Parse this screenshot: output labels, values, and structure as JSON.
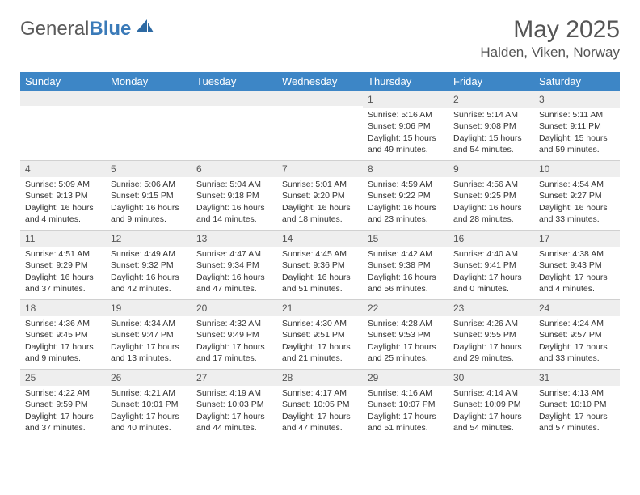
{
  "brand": {
    "part1": "General",
    "part2": "Blue"
  },
  "title": "May 2025",
  "location": "Halden, Viken, Norway",
  "colors": {
    "header_bg": "#3d86c6",
    "header_fg": "#ffffff",
    "daynum_bg": "#eeeeee",
    "text": "#333333",
    "brand_gray": "#5a5a5a",
    "brand_blue": "#3a7ab8"
  },
  "weekdays": [
    "Sunday",
    "Monday",
    "Tuesday",
    "Wednesday",
    "Thursday",
    "Friday",
    "Saturday"
  ],
  "grid": {
    "cols": 7,
    "rows": 5,
    "first_weekday_index": 4,
    "days_in_month": 31
  },
  "days": [
    {
      "n": 1,
      "sunrise": "5:16 AM",
      "sunset": "9:06 PM",
      "daylight": "15 hours and 49 minutes."
    },
    {
      "n": 2,
      "sunrise": "5:14 AM",
      "sunset": "9:08 PM",
      "daylight": "15 hours and 54 minutes."
    },
    {
      "n": 3,
      "sunrise": "5:11 AM",
      "sunset": "9:11 PM",
      "daylight": "15 hours and 59 minutes."
    },
    {
      "n": 4,
      "sunrise": "5:09 AM",
      "sunset": "9:13 PM",
      "daylight": "16 hours and 4 minutes."
    },
    {
      "n": 5,
      "sunrise": "5:06 AM",
      "sunset": "9:15 PM",
      "daylight": "16 hours and 9 minutes."
    },
    {
      "n": 6,
      "sunrise": "5:04 AM",
      "sunset": "9:18 PM",
      "daylight": "16 hours and 14 minutes."
    },
    {
      "n": 7,
      "sunrise": "5:01 AM",
      "sunset": "9:20 PM",
      "daylight": "16 hours and 18 minutes."
    },
    {
      "n": 8,
      "sunrise": "4:59 AM",
      "sunset": "9:22 PM",
      "daylight": "16 hours and 23 minutes."
    },
    {
      "n": 9,
      "sunrise": "4:56 AM",
      "sunset": "9:25 PM",
      "daylight": "16 hours and 28 minutes."
    },
    {
      "n": 10,
      "sunrise": "4:54 AM",
      "sunset": "9:27 PM",
      "daylight": "16 hours and 33 minutes."
    },
    {
      "n": 11,
      "sunrise": "4:51 AM",
      "sunset": "9:29 PM",
      "daylight": "16 hours and 37 minutes."
    },
    {
      "n": 12,
      "sunrise": "4:49 AM",
      "sunset": "9:32 PM",
      "daylight": "16 hours and 42 minutes."
    },
    {
      "n": 13,
      "sunrise": "4:47 AM",
      "sunset": "9:34 PM",
      "daylight": "16 hours and 47 minutes."
    },
    {
      "n": 14,
      "sunrise": "4:45 AM",
      "sunset": "9:36 PM",
      "daylight": "16 hours and 51 minutes."
    },
    {
      "n": 15,
      "sunrise": "4:42 AM",
      "sunset": "9:38 PM",
      "daylight": "16 hours and 56 minutes."
    },
    {
      "n": 16,
      "sunrise": "4:40 AM",
      "sunset": "9:41 PM",
      "daylight": "17 hours and 0 minutes."
    },
    {
      "n": 17,
      "sunrise": "4:38 AM",
      "sunset": "9:43 PM",
      "daylight": "17 hours and 4 minutes."
    },
    {
      "n": 18,
      "sunrise": "4:36 AM",
      "sunset": "9:45 PM",
      "daylight": "17 hours and 9 minutes."
    },
    {
      "n": 19,
      "sunrise": "4:34 AM",
      "sunset": "9:47 PM",
      "daylight": "17 hours and 13 minutes."
    },
    {
      "n": 20,
      "sunrise": "4:32 AM",
      "sunset": "9:49 PM",
      "daylight": "17 hours and 17 minutes."
    },
    {
      "n": 21,
      "sunrise": "4:30 AM",
      "sunset": "9:51 PM",
      "daylight": "17 hours and 21 minutes."
    },
    {
      "n": 22,
      "sunrise": "4:28 AM",
      "sunset": "9:53 PM",
      "daylight": "17 hours and 25 minutes."
    },
    {
      "n": 23,
      "sunrise": "4:26 AM",
      "sunset": "9:55 PM",
      "daylight": "17 hours and 29 minutes."
    },
    {
      "n": 24,
      "sunrise": "4:24 AM",
      "sunset": "9:57 PM",
      "daylight": "17 hours and 33 minutes."
    },
    {
      "n": 25,
      "sunrise": "4:22 AM",
      "sunset": "9:59 PM",
      "daylight": "17 hours and 37 minutes."
    },
    {
      "n": 26,
      "sunrise": "4:21 AM",
      "sunset": "10:01 PM",
      "daylight": "17 hours and 40 minutes."
    },
    {
      "n": 27,
      "sunrise": "4:19 AM",
      "sunset": "10:03 PM",
      "daylight": "17 hours and 44 minutes."
    },
    {
      "n": 28,
      "sunrise": "4:17 AM",
      "sunset": "10:05 PM",
      "daylight": "17 hours and 47 minutes."
    },
    {
      "n": 29,
      "sunrise": "4:16 AM",
      "sunset": "10:07 PM",
      "daylight": "17 hours and 51 minutes."
    },
    {
      "n": 30,
      "sunrise": "4:14 AM",
      "sunset": "10:09 PM",
      "daylight": "17 hours and 54 minutes."
    },
    {
      "n": 31,
      "sunrise": "4:13 AM",
      "sunset": "10:10 PM",
      "daylight": "17 hours and 57 minutes."
    }
  ],
  "labels": {
    "sunrise": "Sunrise:",
    "sunset": "Sunset:",
    "daylight": "Daylight:"
  }
}
